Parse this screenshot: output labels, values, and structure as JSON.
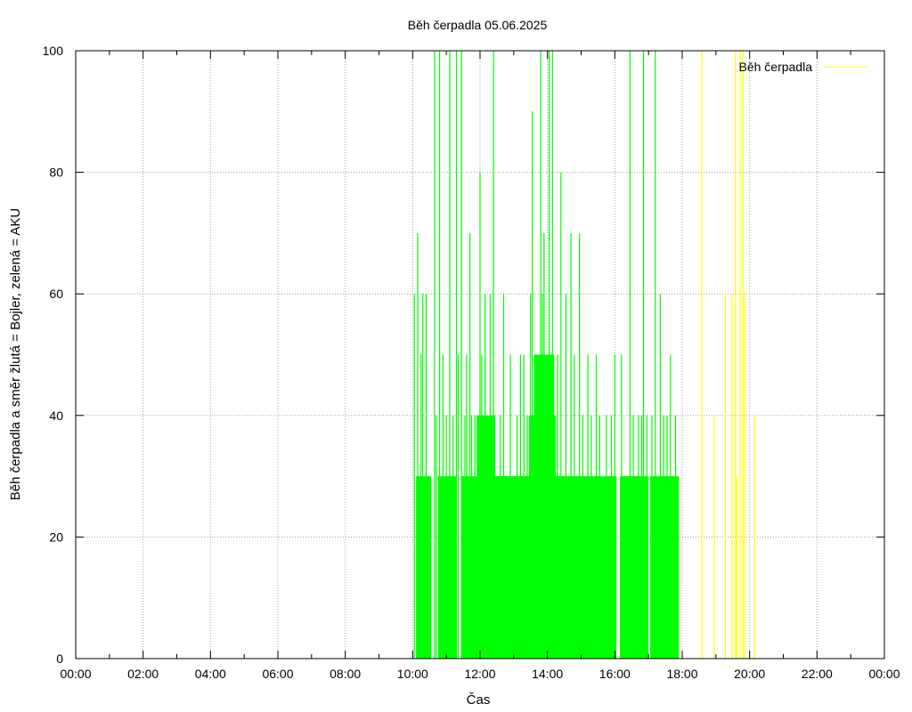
{
  "chart_data": {
    "type": "bar",
    "title": "Běh čerpadla 05.06.2025",
    "xlabel": "Čas",
    "ylabel": "Běh čerpadla a směr žlutá = Bojler, zelená = AKU",
    "x_unit": "hours",
    "xlim": [
      0,
      24
    ],
    "ylim": [
      0,
      100
    ],
    "xticks": [
      {
        "value": 0,
        "label": "00:00"
      },
      {
        "value": 2,
        "label": "02:00"
      },
      {
        "value": 4,
        "label": "04:00"
      },
      {
        "value": 6,
        "label": "06:00"
      },
      {
        "value": 8,
        "label": "08:00"
      },
      {
        "value": 10,
        "label": "10:00"
      },
      {
        "value": 12,
        "label": "12:00"
      },
      {
        "value": 14,
        "label": "14:00"
      },
      {
        "value": 16,
        "label": "16:00"
      },
      {
        "value": 18,
        "label": "18:00"
      },
      {
        "value": 20,
        "label": "20:00"
      },
      {
        "value": 22,
        "label": "22:00"
      },
      {
        "value": 24,
        "label": "00:00"
      }
    ],
    "yticks": [
      {
        "value": 0,
        "label": "0"
      },
      {
        "value": 20,
        "label": "20"
      },
      {
        "value": 40,
        "label": "40"
      },
      {
        "value": 60,
        "label": "60"
      },
      {
        "value": 80,
        "label": "80"
      },
      {
        "value": 100,
        "label": "100"
      }
    ],
    "grid": true,
    "legend": {
      "position": "top-right",
      "label": "Běh čerpadla",
      "color": "#ffff00"
    },
    "series": [
      {
        "color": "#00ff00",
        "fill_blocks": [
          {
            "x0": 10.1,
            "x1": 10.55,
            "y": 30
          },
          {
            "x0": 10.75,
            "x1": 11.3,
            "y": 30
          },
          {
            "x0": 11.45,
            "x1": 12.9,
            "y": 30
          },
          {
            "x0": 11.9,
            "x1": 12.45,
            "y": 40
          },
          {
            "x0": 12.45,
            "x1": 13.4,
            "y": 30
          },
          {
            "x0": 13.4,
            "x1": 14.3,
            "y": 30
          },
          {
            "x0": 13.45,
            "x1": 14.25,
            "y": 40
          },
          {
            "x0": 13.6,
            "x1": 14.2,
            "y": 50
          },
          {
            "x0": 14.3,
            "x1": 16.05,
            "y": 30
          },
          {
            "x0": 16.15,
            "x1": 17.0,
            "y": 30
          },
          {
            "x0": 17.05,
            "x1": 17.9,
            "y": 30
          }
        ],
        "spikes": [
          [
            10.05,
            60
          ],
          [
            10.15,
            70
          ],
          [
            10.25,
            50
          ],
          [
            10.3,
            60
          ],
          [
            10.4,
            60
          ],
          [
            10.65,
            100
          ],
          [
            10.7,
            40
          ],
          [
            10.8,
            100
          ],
          [
            10.9,
            50
          ],
          [
            11.0,
            40
          ],
          [
            11.1,
            100
          ],
          [
            11.2,
            40
          ],
          [
            11.3,
            100
          ],
          [
            11.35,
            50
          ],
          [
            11.45,
            100
          ],
          [
            11.55,
            40
          ],
          [
            11.6,
            50
          ],
          [
            11.7,
            70
          ],
          [
            11.75,
            40
          ],
          [
            11.85,
            40
          ],
          [
            12.0,
            80
          ],
          [
            12.05,
            50
          ],
          [
            12.1,
            40
          ],
          [
            12.15,
            60
          ],
          [
            12.2,
            40
          ],
          [
            12.3,
            60
          ],
          [
            12.4,
            100
          ],
          [
            12.6,
            40
          ],
          [
            12.7,
            60
          ],
          [
            12.9,
            50
          ],
          [
            13.1,
            40
          ],
          [
            13.2,
            50
          ],
          [
            13.3,
            50
          ],
          [
            13.4,
            40
          ],
          [
            13.5,
            60
          ],
          [
            13.55,
            90
          ],
          [
            13.65,
            50
          ],
          [
            13.8,
            100
          ],
          [
            13.85,
            60
          ],
          [
            13.9,
            70
          ],
          [
            13.95,
            50
          ],
          [
            14.05,
            100
          ],
          [
            14.15,
            100
          ],
          [
            14.3,
            50
          ],
          [
            14.4,
            80
          ],
          [
            14.55,
            60
          ],
          [
            14.7,
            70
          ],
          [
            14.8,
            50
          ],
          [
            14.95,
            70
          ],
          [
            15.05,
            40
          ],
          [
            15.2,
            50
          ],
          [
            15.3,
            40
          ],
          [
            15.45,
            50
          ],
          [
            15.55,
            40
          ],
          [
            15.75,
            40
          ],
          [
            15.9,
            40
          ],
          [
            16.0,
            50
          ],
          [
            16.2,
            50
          ],
          [
            16.45,
            100
          ],
          [
            16.55,
            40
          ],
          [
            16.7,
            40
          ],
          [
            16.8,
            40
          ],
          [
            16.85,
            100
          ],
          [
            16.95,
            40
          ],
          [
            17.1,
            40
          ],
          [
            17.2,
            100
          ],
          [
            17.35,
            60
          ],
          [
            17.45,
            40
          ],
          [
            17.55,
            40
          ],
          [
            17.65,
            50
          ],
          [
            17.8,
            40
          ]
        ]
      },
      {
        "color": "#ffff00",
        "spikes": [
          [
            18.58,
            100
          ],
          [
            18.95,
            40
          ],
          [
            19.28,
            60
          ],
          [
            19.48,
            60
          ],
          [
            19.58,
            100
          ],
          [
            19.62,
            30
          ],
          [
            19.72,
            100
          ],
          [
            19.8,
            100
          ],
          [
            19.85,
            60
          ],
          [
            20.15,
            40
          ]
        ]
      }
    ]
  }
}
